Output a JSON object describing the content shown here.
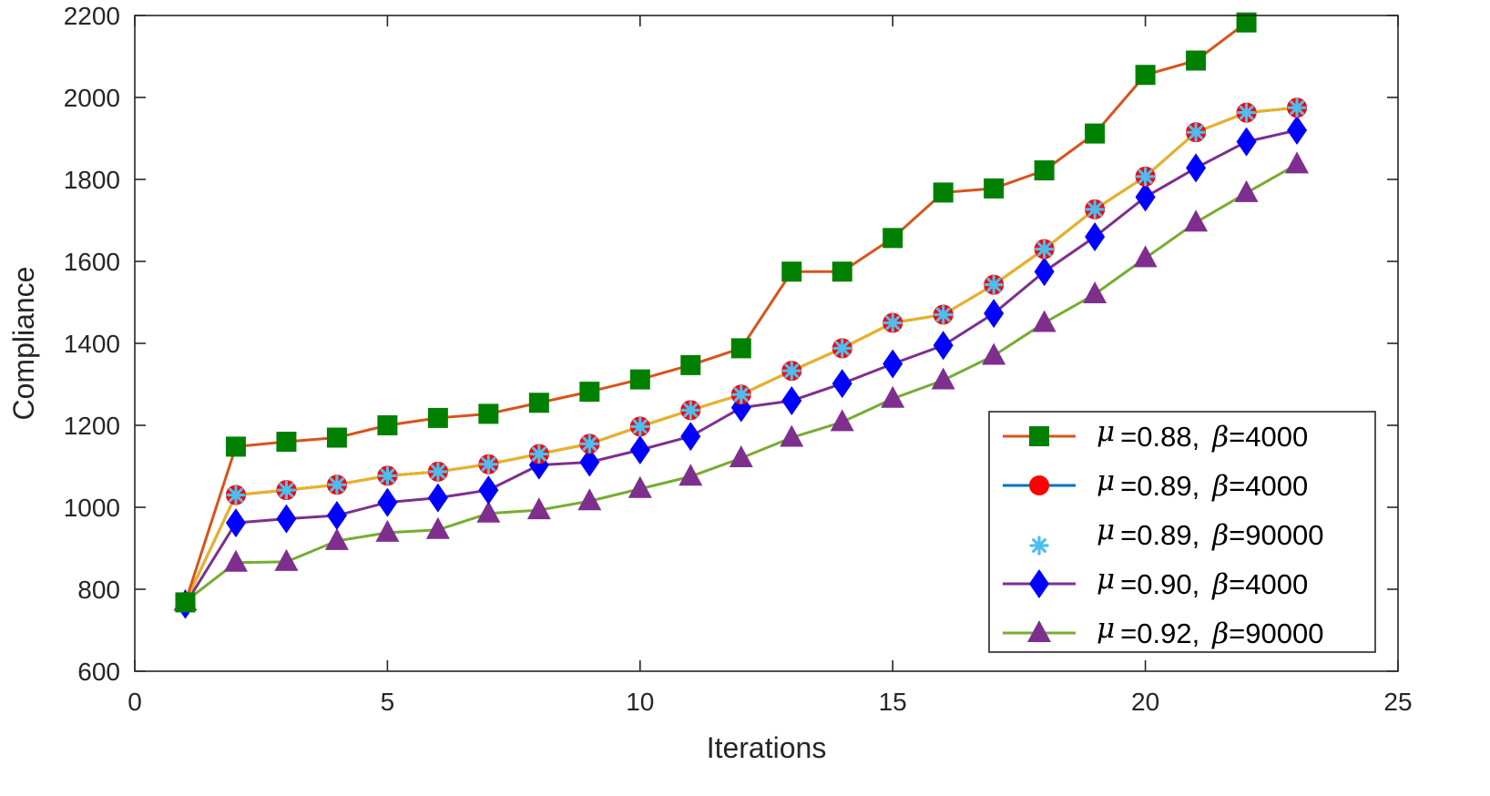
{
  "chart_data": {
    "type": "line",
    "title": "",
    "xlabel": "Iterations",
    "ylabel": "Compliance",
    "xlim": [
      0,
      25
    ],
    "ylim": [
      600,
      2200
    ],
    "xticks": [
      0,
      5,
      10,
      15,
      20,
      25
    ],
    "yticks": [
      600,
      800,
      1000,
      1200,
      1400,
      1600,
      1800,
      2000,
      2200
    ],
    "grid": false,
    "legend_position": "bottom-right",
    "series": [
      {
        "name": "mu=0.88, beta=4000",
        "mu": "0.88",
        "beta": "4000",
        "line_color": "#D95319",
        "marker": "square",
        "marker_color": "#008000",
        "x": [
          1,
          2,
          3,
          4,
          5,
          6,
          7,
          8,
          9,
          10,
          11,
          12,
          13,
          14,
          15,
          16,
          17,
          18,
          19,
          20,
          21,
          22
        ],
        "values": [
          768,
          1148,
          1160,
          1170,
          1200,
          1218,
          1228,
          1255,
          1282,
          1312,
          1347,
          1388,
          1575,
          1575,
          1657,
          1768,
          1778,
          1822,
          1912,
          2055,
          2090,
          2183
        ]
      },
      {
        "name": "mu=0.89, beta=4000",
        "mu": "0.89",
        "beta": "4000",
        "line_color": "#0072BD",
        "marker": "circle",
        "marker_color": "#FF0000",
        "x": [
          1,
          2,
          3,
          4,
          5,
          6,
          7,
          8,
          9,
          10,
          11,
          12,
          13,
          14,
          15,
          16,
          17,
          18,
          19,
          20,
          21,
          22,
          23
        ],
        "values": [
          768,
          1030,
          1042,
          1055,
          1077,
          1087,
          1105,
          1130,
          1155,
          1197,
          1237,
          1275,
          1333,
          1388,
          1450,
          1470,
          1543,
          1630,
          1727,
          1807,
          1915,
          1963,
          1975
        ]
      },
      {
        "name": "mu=0.89, beta=90000",
        "mu": "0.89",
        "beta": "90000",
        "line_color": "#EDB120",
        "marker": "asterisk",
        "marker_color": "#4DBEEE",
        "x": [
          1,
          2,
          3,
          4,
          5,
          6,
          7,
          8,
          9,
          10,
          11,
          12,
          13,
          14,
          15,
          16,
          17,
          18,
          19,
          20,
          21,
          22,
          23
        ],
        "values": [
          768,
          1030,
          1042,
          1055,
          1077,
          1087,
          1105,
          1130,
          1155,
          1197,
          1237,
          1275,
          1333,
          1388,
          1450,
          1470,
          1543,
          1630,
          1727,
          1807,
          1915,
          1963,
          1975
        ]
      },
      {
        "name": "mu=0.90, beta=4000",
        "mu": "0.90",
        "beta": "4000",
        "line_color": "#7E2F8E",
        "marker": "diamond",
        "marker_color": "#0000FF",
        "x": [
          1,
          2,
          3,
          4,
          5,
          6,
          7,
          8,
          9,
          10,
          11,
          12,
          13,
          14,
          15,
          16,
          17,
          18,
          19,
          20,
          21,
          22,
          23
        ],
        "values": [
          763,
          962,
          972,
          980,
          1012,
          1023,
          1042,
          1103,
          1110,
          1140,
          1173,
          1243,
          1260,
          1302,
          1350,
          1395,
          1473,
          1575,
          1660,
          1757,
          1828,
          1892,
          1920
        ]
      },
      {
        "name": "mu=0.92, beta=90000",
        "mu": "0.92",
        "beta": "90000",
        "line_color": "#77AC30",
        "marker": "triangle",
        "marker_color": "#7E2F8E",
        "x": [
          1,
          2,
          3,
          4,
          5,
          6,
          7,
          8,
          9,
          10,
          11,
          12,
          13,
          14,
          15,
          16,
          17,
          18,
          19,
          20,
          21,
          22,
          23
        ],
        "values": [
          770,
          865,
          867,
          918,
          938,
          945,
          985,
          993,
          1015,
          1045,
          1075,
          1120,
          1170,
          1208,
          1265,
          1310,
          1370,
          1450,
          1520,
          1608,
          1695,
          1767,
          1837
        ]
      }
    ]
  },
  "legend": {
    "items": [
      {
        "mu_label": "=0.88,",
        "beta_label": "=4000"
      },
      {
        "mu_label": "=0.89,",
        "beta_label": "=4000"
      },
      {
        "mu_label": "=0.89,",
        "beta_label": "=90000"
      },
      {
        "mu_label": "=0.90,",
        "beta_label": "=4000"
      },
      {
        "mu_label": "=0.92,",
        "beta_label": "=90000"
      }
    ],
    "mu_symbol": "μ",
    "beta_symbol": "β"
  },
  "colors": {
    "axis": "#262626",
    "legend_border": "#262626",
    "background": "#FFFFFF"
  }
}
